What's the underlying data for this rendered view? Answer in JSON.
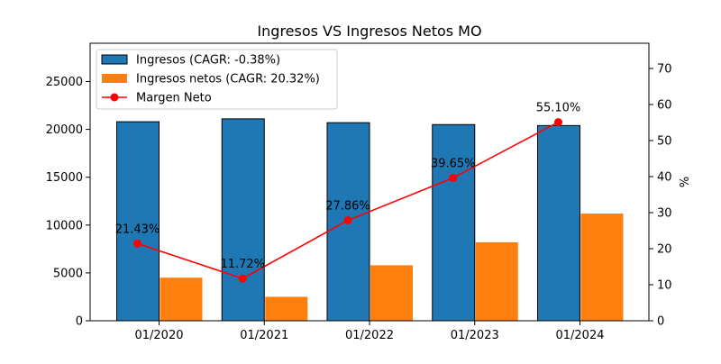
{
  "chart_data": {
    "type": "bar",
    "title": "Ingresos VS Ingresos Netos MO",
    "xlabel": "",
    "ylabel": "",
    "y2label": "%",
    "categories": [
      "01/2020",
      "01/2021",
      "01/2022",
      "01/2023",
      "01/2024"
    ],
    "ylim": [
      0,
      29000
    ],
    "y2lim": [
      0,
      77
    ],
    "yticks": [
      "0",
      "5000",
      "10000",
      "15000",
      "20000",
      "25000"
    ],
    "y2ticks": [
      "0",
      "10",
      "20",
      "30",
      "40",
      "50",
      "60",
      "70"
    ],
    "series": [
      {
        "name": "Ingresos (CAGR: -0.38%)",
        "kind": "bar",
        "color": "#1f77b4",
        "values": [
          20800,
          21100,
          20700,
          20500,
          20400
        ]
      },
      {
        "name": "Ingresos netos (CAGR: 20.32%)",
        "kind": "bar",
        "color": "#ff7f0e",
        "values": [
          4500,
          2500,
          5800,
          8200,
          11200
        ]
      },
      {
        "name": "Margen Neto",
        "kind": "line",
        "axis": "right",
        "color": "#ff0000",
        "values": [
          21.43,
          11.72,
          27.86,
          39.65,
          55.1
        ],
        "labels": [
          "21.43%",
          "11.72%",
          "27.86%",
          "39.65%",
          "55.10%"
        ]
      }
    ],
    "legend_position": "top-left",
    "grid": false
  }
}
